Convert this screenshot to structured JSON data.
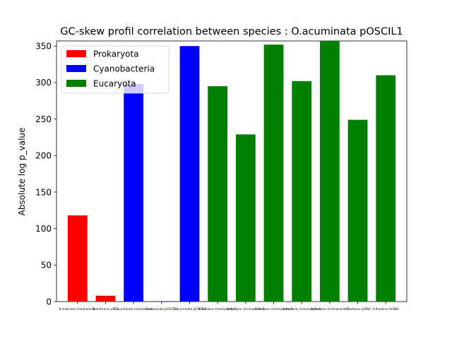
{
  "chart_data": {
    "type": "bar",
    "title": "GC-skew profil correlation between species : O.acuminata pOSCIL1",
    "xlabel": "",
    "ylabel": "Absolute log p_value",
    "ylim": [
      0,
      357
    ],
    "yticks": [
      0,
      50,
      100,
      150,
      200,
      250,
      300,
      350
    ],
    "grid": false,
    "legend_position": "top-left",
    "legend": [
      {
        "label": "Prokaryota",
        "color": "#ff0000"
      },
      {
        "label": "Cyanobacteria",
        "color": "#0000ff"
      },
      {
        "label": "Eucaryota",
        "color": "#008000"
      }
    ],
    "categories": [
      "B.anthracis chromosome",
      "B.anthracis pXO1",
      "O.acuminata chromosome",
      "O.acuminata pOSCIL1",
      "O.acuminata pOSCIL2",
      "A.thaliana chromosome 1",
      "A.thaliana chromosome 2",
      "A.thaliana chromosome 3",
      "A.thaliana chromosome 4",
      "A.thaliana chromosome 5",
      "A.thaliana cpDNA",
      "A.thaliana mtDNA"
    ],
    "values": [
      118,
      8,
      298,
      0.5,
      350,
      295,
      229,
      352,
      302,
      357,
      249,
      310
    ],
    "groups": [
      "Prokaryota",
      "Prokaryota",
      "Cyanobacteria",
      "Cyanobacteria",
      "Cyanobacteria",
      "Eucaryota",
      "Eucaryota",
      "Eucaryota",
      "Eucaryota",
      "Eucaryota",
      "Eucaryota",
      "Eucaryota"
    ]
  }
}
